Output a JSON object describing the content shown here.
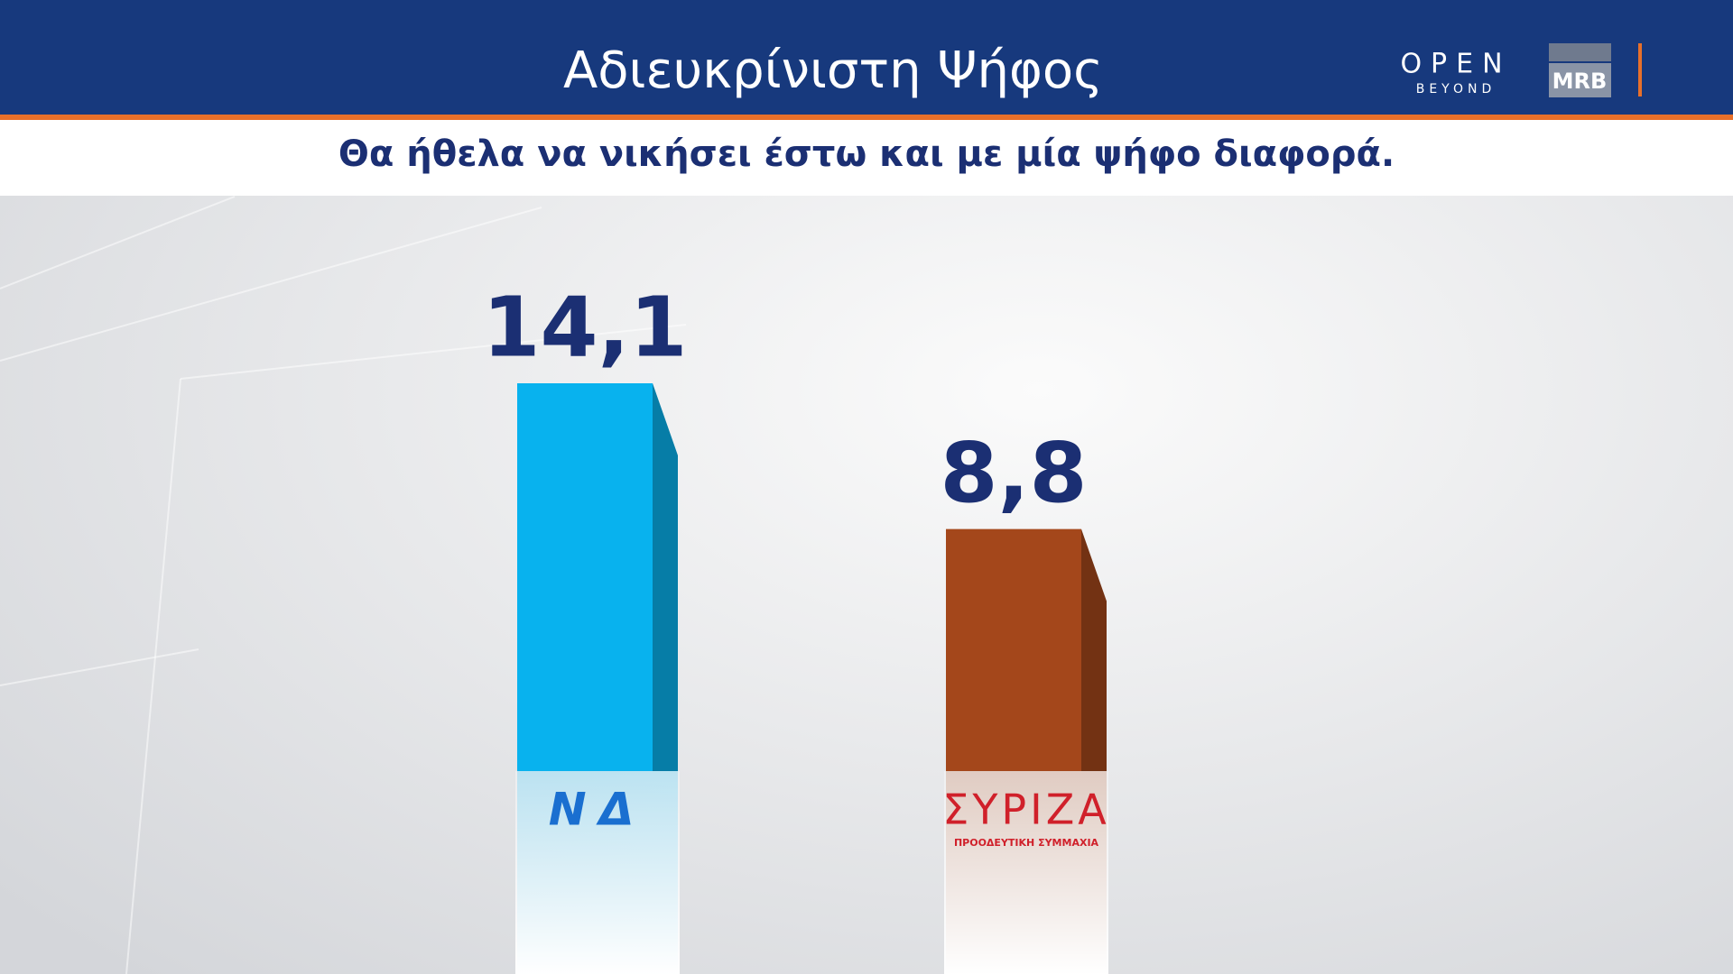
{
  "chart_data": {
    "type": "bar",
    "title": "Αδιευκρίνιστη Ψήφος",
    "subtitle": "Θα ήθελα να νικήσει έστω και με μία ψήφο διαφορά.",
    "categories": [
      "ΝΔ",
      "ΣΥΡΙΖΑ"
    ],
    "category_sublabels": [
      null,
      "ΠΡΟΟΔΕΥΤΙΚΗ ΣΥΜΜΑΧΙΑ"
    ],
    "values": [
      14.1,
      8.8
    ],
    "value_labels": [
      "14,1",
      "8,8"
    ],
    "colors": [
      "#08b2ee",
      "#a4471b"
    ],
    "category_colors": [
      "#1a6fd0",
      "#d0202a"
    ]
  },
  "branding": {
    "channel": "OPEN",
    "channel_tagline": "BEYOND",
    "pollster": "MRB"
  }
}
